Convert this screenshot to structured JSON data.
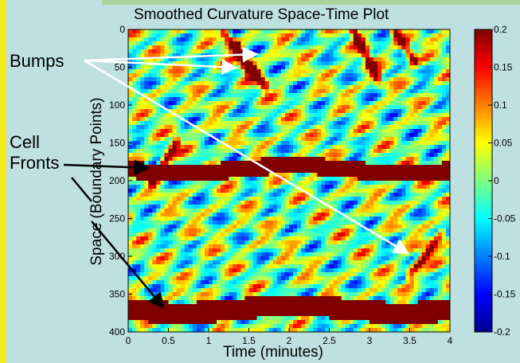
{
  "chart_data": {
    "type": "heatmap",
    "title": "Smoothed Curvature Space-Time Plot",
    "xlabel": "Time (minutes)",
    "ylabel": "Space   (Boundary Points)",
    "xlim": [
      0,
      4
    ],
    "ylim": [
      0,
      400
    ],
    "y_reversed": true,
    "xticks": [
      "0",
      "0.5",
      "1",
      "1.5",
      "2",
      "2.5",
      "3",
      "3.5",
      "4"
    ],
    "yticks": [
      "0",
      "50",
      "100",
      "150",
      "200",
      "250",
      "300",
      "350",
      "400"
    ],
    "colorbar": {
      "min": -0.2,
      "max": 0.2,
      "colormap": "jet",
      "ticks": [
        "0.2",
        "0.15",
        "0.1",
        "0.05",
        "0",
        "-0.05",
        "-0.1",
        "-0.15",
        "-0.2"
      ]
    },
    "features": {
      "bumps": [
        {
          "t0": 0.3,
          "s0": 200,
          "t1": 0.6,
          "s1": 150
        },
        {
          "t0": 1.2,
          "s0": 5,
          "t1": 1.55,
          "s1": 60
        },
        {
          "t0": 1.35,
          "s0": 25,
          "t1": 1.7,
          "s1": 75
        },
        {
          "t0": 2.8,
          "s0": 0,
          "t1": 3.1,
          "s1": 65
        },
        {
          "t0": 3.3,
          "s0": 0,
          "t1": 3.55,
          "s1": 40
        },
        {
          "t0": 3.5,
          "s0": 325,
          "t1": 3.9,
          "s1": 270
        }
      ],
      "cell_fronts": [
        {
          "center": 185,
          "width": 22
        },
        {
          "center": 370,
          "width": 28
        }
      ]
    },
    "annotations": {
      "bumps": "Bumps",
      "cell_fronts_line1": "Cell",
      "cell_fronts_line2": "Fronts"
    }
  }
}
